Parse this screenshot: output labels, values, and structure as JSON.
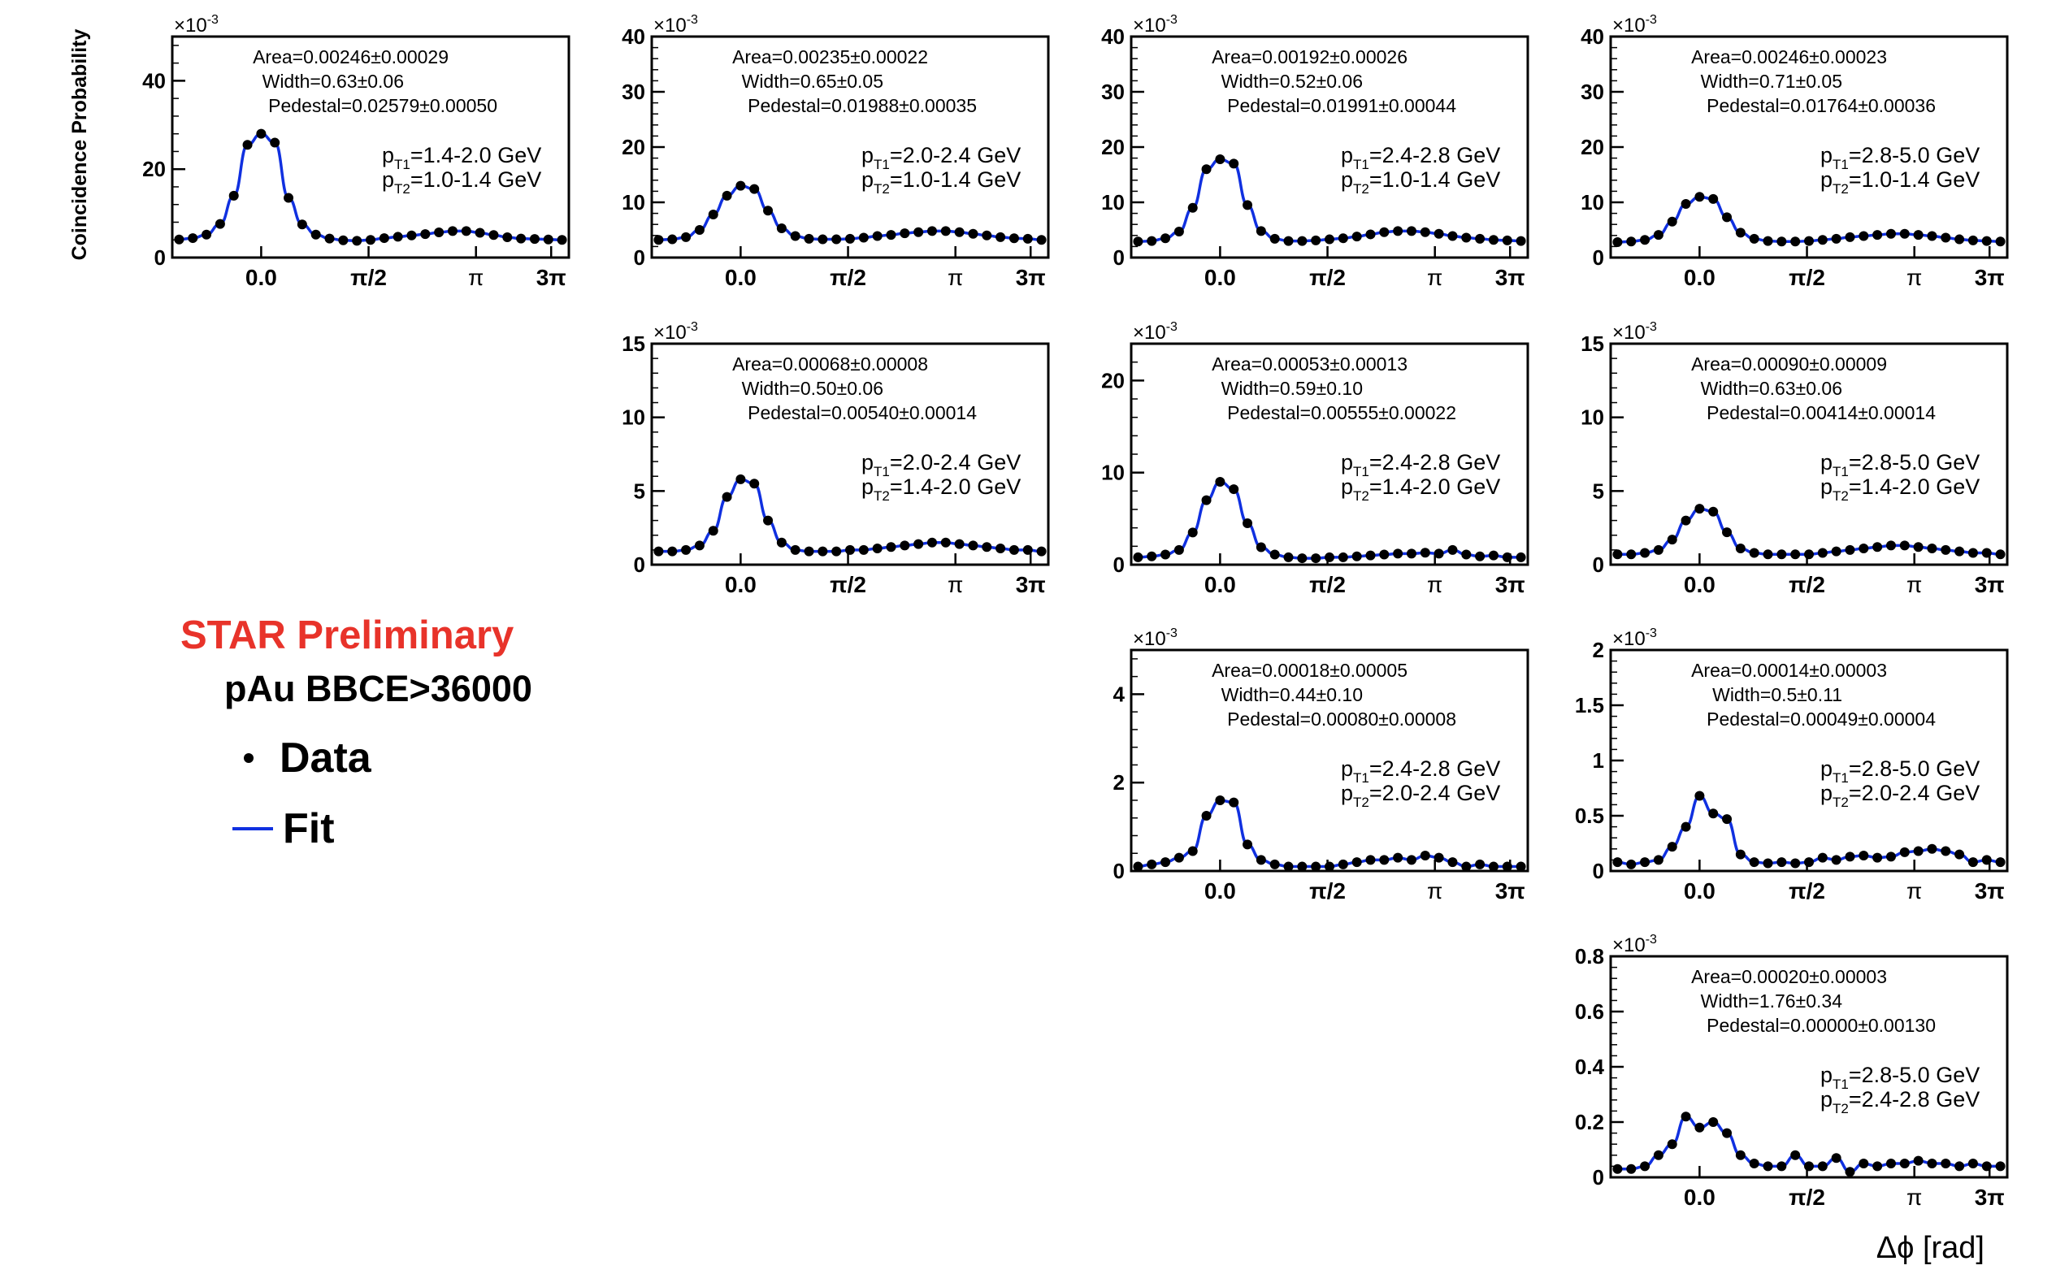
{
  "figure": {
    "y_axis_title": "Coincidence Probability",
    "x_axis_title": "Δϕ [rad]",
    "x_tick_labels": [
      "0.0",
      "π/2",
      "π",
      "3π"
    ],
    "exponent_label": "×10",
    "exponent_power": "-3",
    "colors": {
      "data": "#000000",
      "fit": "#1030e0",
      "star": "#e8332a"
    }
  },
  "legend": {
    "star_label": "STAR Preliminary",
    "system_label": "pAu BBCE>36000",
    "data_label": "Data",
    "fit_label": "Fit"
  },
  "chart_data": [
    {
      "type": "scatter",
      "row": 0,
      "col": 0,
      "area": "Area=0.00246±0.00029",
      "width": "Width=0.63±0.06",
      "pedestal": "Pedestal=0.02579±0.00050",
      "pt1": "=1.4-2.0 GeV",
      "pt2": "=1.0-1.4 GeV",
      "ylim": [
        0,
        50
      ],
      "yticks": [
        0,
        20,
        40
      ],
      "x": [
        -1.2,
        -1.0,
        -0.8,
        -0.6,
        -0.4,
        -0.2,
        0.0,
        0.2,
        0.4,
        0.6,
        0.8,
        1.0,
        1.2,
        1.4,
        1.6,
        1.8,
        2.0,
        2.2,
        2.4,
        2.6,
        2.8,
        3.0,
        3.2,
        3.4,
        3.6,
        3.8,
        4.0,
        4.2,
        4.4
      ],
      "y": [
        4.1,
        4.4,
        5.2,
        7.6,
        14.0,
        25.5,
        28.0,
        26.0,
        13.5,
        7.5,
        5.2,
        4.3,
        3.9,
        3.8,
        4.0,
        4.4,
        4.7,
        5.0,
        5.3,
        5.7,
        6.0,
        6.0,
        5.6,
        5.1,
        4.6,
        4.3,
        4.2,
        4.1,
        4.0
      ]
    },
    {
      "type": "scatter",
      "row": 0,
      "col": 1,
      "area": "Area=0.00235±0.00022",
      "width": "Width=0.65±0.05",
      "pedestal": "Pedestal=0.01988±0.00035",
      "pt1": "=2.0-2.4 GeV",
      "pt2": "=1.0-1.4 GeV",
      "ylim": [
        0,
        40
      ],
      "yticks": [
        0,
        10,
        20,
        30,
        40
      ],
      "x": [
        -1.2,
        -1.0,
        -0.8,
        -0.6,
        -0.4,
        -0.2,
        0.0,
        0.2,
        0.4,
        0.6,
        0.8,
        1.0,
        1.2,
        1.4,
        1.6,
        1.8,
        2.0,
        2.2,
        2.4,
        2.6,
        2.8,
        3.0,
        3.2,
        3.4,
        3.6,
        3.8,
        4.0,
        4.2,
        4.4
      ],
      "y": [
        3.2,
        3.3,
        3.7,
        5.0,
        7.8,
        11.2,
        13.0,
        12.4,
        8.5,
        5.3,
        3.9,
        3.4,
        3.3,
        3.3,
        3.4,
        3.6,
        3.9,
        4.1,
        4.4,
        4.6,
        4.8,
        4.8,
        4.6,
        4.3,
        4.0,
        3.7,
        3.5,
        3.4,
        3.2
      ]
    },
    {
      "type": "scatter",
      "row": 0,
      "col": 2,
      "area": "Area=0.00192±0.00026",
      "width": "Width=0.52±0.06",
      "pedestal": "Pedestal=0.01991±0.00044",
      "pt1": "=2.4-2.8 GeV",
      "pt2": "=1.0-1.4 GeV",
      "ylim": [
        0,
        40
      ],
      "yticks": [
        0,
        10,
        20,
        30,
        40
      ],
      "x": [
        -1.2,
        -1.0,
        -0.8,
        -0.6,
        -0.4,
        -0.2,
        0.0,
        0.2,
        0.4,
        0.6,
        0.8,
        1.0,
        1.2,
        1.4,
        1.6,
        1.8,
        2.0,
        2.2,
        2.4,
        2.6,
        2.8,
        3.0,
        3.2,
        3.4,
        3.6,
        3.8,
        4.0,
        4.2,
        4.4
      ],
      "y": [
        2.9,
        3.0,
        3.5,
        4.7,
        9.0,
        16.0,
        17.8,
        17.0,
        9.5,
        4.8,
        3.4,
        3.0,
        3.0,
        3.1,
        3.3,
        3.5,
        3.8,
        4.2,
        4.6,
        4.8,
        4.8,
        4.6,
        4.3,
        3.9,
        3.6,
        3.4,
        3.2,
        3.1,
        3.0
      ]
    },
    {
      "type": "scatter",
      "row": 0,
      "col": 3,
      "area": "Area=0.00246±0.00023",
      "width": "Width=0.71±0.05",
      "pedestal": "Pedestal=0.01764±0.00036",
      "pt1": "=2.8-5.0 GeV",
      "pt2": "=1.0-1.4 GeV",
      "ylim": [
        0,
        40
      ],
      "yticks": [
        0,
        10,
        20,
        30,
        40
      ],
      "x": [
        -1.2,
        -1.0,
        -0.8,
        -0.6,
        -0.4,
        -0.2,
        0.0,
        0.2,
        0.4,
        0.6,
        0.8,
        1.0,
        1.2,
        1.4,
        1.6,
        1.8,
        2.0,
        2.2,
        2.4,
        2.6,
        2.8,
        3.0,
        3.2,
        3.4,
        3.6,
        3.8,
        4.0,
        4.2,
        4.4
      ],
      "y": [
        2.8,
        2.9,
        3.2,
        4.1,
        6.5,
        9.7,
        11.0,
        10.6,
        7.3,
        4.5,
        3.4,
        3.0,
        2.9,
        2.9,
        3.0,
        3.2,
        3.4,
        3.7,
        3.9,
        4.1,
        4.3,
        4.3,
        4.1,
        3.9,
        3.6,
        3.3,
        3.1,
        3.0,
        2.9
      ]
    },
    {
      "type": "scatter",
      "row": 1,
      "col": 1,
      "area": "Area=0.00068±0.00008",
      "width": "Width=0.50±0.06",
      "pedestal": "Pedestal=0.00540±0.00014",
      "pt1": "=2.0-2.4 GeV",
      "pt2": "=1.4-2.0 GeV",
      "ylim": [
        0,
        15
      ],
      "yticks": [
        0,
        5,
        10,
        15
      ],
      "x": [
        -1.2,
        -1.0,
        -0.8,
        -0.6,
        -0.4,
        -0.2,
        0.0,
        0.2,
        0.4,
        0.6,
        0.8,
        1.0,
        1.2,
        1.4,
        1.6,
        1.8,
        2.0,
        2.2,
        2.4,
        2.6,
        2.8,
        3.0,
        3.2,
        3.4,
        3.6,
        3.8,
        4.0,
        4.2,
        4.4
      ],
      "y": [
        0.9,
        0.9,
        1.0,
        1.3,
        2.3,
        4.6,
        5.8,
        5.5,
        3.0,
        1.5,
        1.0,
        0.9,
        0.9,
        0.9,
        1.0,
        1.0,
        1.1,
        1.2,
        1.3,
        1.4,
        1.5,
        1.5,
        1.4,
        1.3,
        1.2,
        1.1,
        1.0,
        1.0,
        0.9
      ]
    },
    {
      "type": "scatter",
      "row": 1,
      "col": 2,
      "area": "Area=0.00053±0.00013",
      "width": "Width=0.59±0.10",
      "pedestal": "Pedestal=0.00555±0.00022",
      "pt1": "=2.4-2.8 GeV",
      "pt2": "=1.4-2.0 GeV",
      "ylim": [
        0,
        24
      ],
      "yticks": [
        0,
        10,
        20
      ],
      "x": [
        -1.2,
        -1.0,
        -0.8,
        -0.6,
        -0.4,
        -0.2,
        0.0,
        0.2,
        0.4,
        0.6,
        0.8,
        1.0,
        1.2,
        1.4,
        1.6,
        1.8,
        2.0,
        2.2,
        2.4,
        2.6,
        2.8,
        3.0,
        3.2,
        3.4,
        3.6,
        3.8,
        4.0,
        4.2,
        4.4
      ],
      "y": [
        0.8,
        0.9,
        1.1,
        1.6,
        3.5,
        7.0,
        9.0,
        8.2,
        4.5,
        1.9,
        1.1,
        0.8,
        0.7,
        0.7,
        0.8,
        0.8,
        0.9,
        1.0,
        1.1,
        1.2,
        1.2,
        1.3,
        1.2,
        1.6,
        1.1,
        0.9,
        1.0,
        0.8,
        0.8
      ]
    },
    {
      "type": "scatter",
      "row": 1,
      "col": 3,
      "area": "Area=0.00090±0.00009",
      "width": "Width=0.63±0.06",
      "pedestal": "Pedestal=0.00414±0.00014",
      "pt1": "=2.8-5.0 GeV",
      "pt2": "=1.4-2.0 GeV",
      "ylim": [
        0,
        15
      ],
      "yticks": [
        0,
        5,
        10,
        15
      ],
      "x": [
        -1.2,
        -1.0,
        -0.8,
        -0.6,
        -0.4,
        -0.2,
        0.0,
        0.2,
        0.4,
        0.6,
        0.8,
        1.0,
        1.2,
        1.4,
        1.6,
        1.8,
        2.0,
        2.2,
        2.4,
        2.6,
        2.8,
        3.0,
        3.2,
        3.4,
        3.6,
        3.8,
        4.0,
        4.2,
        4.4
      ],
      "y": [
        0.7,
        0.7,
        0.8,
        1.0,
        1.7,
        3.0,
        3.8,
        3.6,
        2.2,
        1.1,
        0.8,
        0.7,
        0.7,
        0.7,
        0.7,
        0.8,
        0.9,
        1.0,
        1.1,
        1.2,
        1.3,
        1.3,
        1.2,
        1.1,
        1.0,
        0.9,
        0.8,
        0.8,
        0.7
      ]
    },
    {
      "type": "scatter",
      "row": 2,
      "col": 2,
      "area": "Area=0.00018±0.00005",
      "width": "Width=0.44±0.10",
      "pedestal": "Pedestal=0.00080±0.00008",
      "pt1": "=2.4-2.8 GeV",
      "pt2": "=2.0-2.4 GeV",
      "ylim": [
        0,
        5
      ],
      "yticks": [
        0,
        2,
        4
      ],
      "x": [
        -1.2,
        -1.0,
        -0.8,
        -0.6,
        -0.4,
        -0.2,
        0.0,
        0.2,
        0.4,
        0.6,
        0.8,
        1.0,
        1.2,
        1.4,
        1.6,
        1.8,
        2.0,
        2.2,
        2.4,
        2.6,
        2.8,
        3.0,
        3.2,
        3.4,
        3.6,
        3.8,
        4.0,
        4.2,
        4.4
      ],
      "y": [
        0.1,
        0.15,
        0.2,
        0.3,
        0.45,
        1.25,
        1.6,
        1.55,
        0.6,
        0.25,
        0.15,
        0.1,
        0.1,
        0.1,
        0.1,
        0.15,
        0.2,
        0.25,
        0.25,
        0.3,
        0.25,
        0.35,
        0.3,
        0.2,
        0.1,
        0.15,
        0.1,
        0.1,
        0.1
      ]
    },
    {
      "type": "scatter",
      "row": 2,
      "col": 3,
      "area": "Area=0.00014±0.00003",
      "width": "Width=0.5±0.11",
      "pedestal": "Pedestal=0.00049±0.00004",
      "pt1": "=2.8-5.0 GeV",
      "pt2": "=2.0-2.4 GeV",
      "ylim": [
        0,
        2
      ],
      "yticks": [
        0,
        0.5,
        1,
        1.5,
        2
      ],
      "ytick_labels": [
        "0",
        "0.5",
        "1",
        "1.5",
        "2"
      ],
      "x": [
        -1.2,
        -1.0,
        -0.8,
        -0.6,
        -0.4,
        -0.2,
        0.0,
        0.2,
        0.4,
        0.6,
        0.8,
        1.0,
        1.2,
        1.4,
        1.6,
        1.8,
        2.0,
        2.2,
        2.4,
        2.6,
        2.8,
        3.0,
        3.2,
        3.4,
        3.6,
        3.8,
        4.0,
        4.2,
        4.4
      ],
      "y": [
        0.08,
        0.06,
        0.08,
        0.1,
        0.22,
        0.4,
        0.68,
        0.52,
        0.47,
        0.15,
        0.08,
        0.07,
        0.08,
        0.07,
        0.08,
        0.12,
        0.1,
        0.13,
        0.14,
        0.12,
        0.13,
        0.17,
        0.18,
        0.2,
        0.18,
        0.15,
        0.08,
        0.1,
        0.08
      ]
    },
    {
      "type": "scatter",
      "row": 3,
      "col": 3,
      "area": "Area=0.00020±0.00003",
      "width": "Width=1.76±0.34",
      "pedestal": "Pedestal=0.00000±0.00130",
      "pt1": "=2.8-5.0 GeV",
      "pt2": "=2.4-2.8 GeV",
      "ylim": [
        0,
        0.8
      ],
      "yticks": [
        0,
        0.2,
        0.4,
        0.6,
        0.8
      ],
      "ytick_labels": [
        "0",
        "0.2",
        "0.4",
        "0.6",
        "0.8"
      ],
      "x": [
        -1.2,
        -1.0,
        -0.8,
        -0.6,
        -0.4,
        -0.2,
        0.0,
        0.2,
        0.4,
        0.6,
        0.8,
        1.0,
        1.2,
        1.4,
        1.6,
        1.8,
        2.0,
        2.2,
        2.4,
        2.6,
        2.8,
        3.0,
        3.2,
        3.4,
        3.6,
        3.8,
        4.0,
        4.2,
        4.4
      ],
      "y": [
        0.03,
        0.03,
        0.04,
        0.08,
        0.12,
        0.22,
        0.18,
        0.2,
        0.16,
        0.08,
        0.05,
        0.04,
        0.04,
        0.08,
        0.04,
        0.04,
        0.07,
        0.02,
        0.05,
        0.04,
        0.05,
        0.05,
        0.06,
        0.05,
        0.05,
        0.04,
        0.05,
        0.04,
        0.04
      ]
    }
  ]
}
